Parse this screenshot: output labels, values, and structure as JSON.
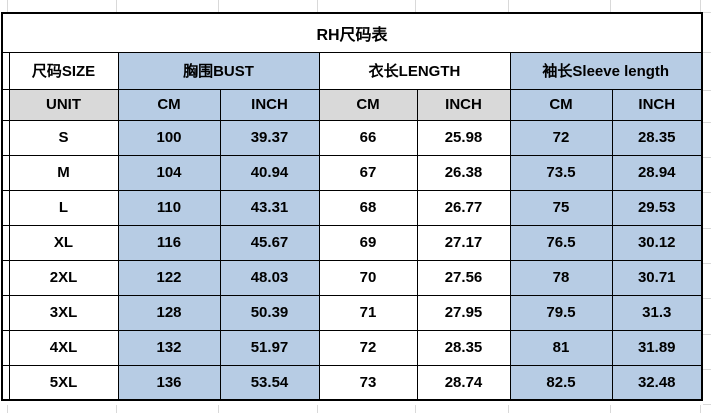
{
  "sheet": {
    "background": "#ffffff",
    "gridline_color": "#d9d9d9"
  },
  "table": {
    "title": "RH尺码表",
    "colors": {
      "band_blue": "#b7cce4",
      "unit_gray": "#d9d9d9",
      "cell_white": "#ffffff",
      "border_black": "#000000",
      "text_black": "#000000"
    },
    "column_groups": {
      "size": "尺码SIZE",
      "bust": "胸围BUST",
      "length": "衣长LENGTH",
      "sleeve": "袖长Sleeve length"
    },
    "unit_row": {
      "label": "UNIT",
      "units": [
        "CM",
        "INCH",
        "CM",
        "INCH",
        "CM",
        "INCH"
      ]
    },
    "rows": [
      {
        "size": "S",
        "bust_cm": "100",
        "bust_inch": "39.37",
        "length_cm": "66",
        "length_inch": "25.98",
        "sleeve_cm": "72",
        "sleeve_inch": "28.35"
      },
      {
        "size": "M",
        "bust_cm": "104",
        "bust_inch": "40.94",
        "length_cm": "67",
        "length_inch": "26.38",
        "sleeve_cm": "73.5",
        "sleeve_inch": "28.94"
      },
      {
        "size": "L",
        "bust_cm": "110",
        "bust_inch": "43.31",
        "length_cm": "68",
        "length_inch": "26.77",
        "sleeve_cm": "75",
        "sleeve_inch": "29.53"
      },
      {
        "size": "XL",
        "bust_cm": "116",
        "bust_inch": "45.67",
        "length_cm": "69",
        "length_inch": "27.17",
        "sleeve_cm": "76.5",
        "sleeve_inch": "30.12"
      },
      {
        "size": "2XL",
        "bust_cm": "122",
        "bust_inch": "48.03",
        "length_cm": "70",
        "length_inch": "27.56",
        "sleeve_cm": "78",
        "sleeve_inch": "30.71"
      },
      {
        "size": "3XL",
        "bust_cm": "128",
        "bust_inch": "50.39",
        "length_cm": "71",
        "length_inch": "27.95",
        "sleeve_cm": "79.5",
        "sleeve_inch": "31.3"
      },
      {
        "size": "4XL",
        "bust_cm": "132",
        "bust_inch": "51.97",
        "length_cm": "72",
        "length_inch": "28.35",
        "sleeve_cm": "81",
        "sleeve_inch": "31.89"
      },
      {
        "size": "5XL",
        "bust_cm": "136",
        "bust_inch": "53.54",
        "length_cm": "73",
        "length_inch": "28.74",
        "sleeve_cm": "82.5",
        "sleeve_inch": "32.48"
      }
    ]
  },
  "chart_data": {
    "type": "table",
    "title": "RH尺码表",
    "columns": [
      "尺码SIZE",
      "胸围BUST CM",
      "胸围BUST INCH",
      "衣长LENGTH CM",
      "衣长LENGTH INCH",
      "袖长Sleeve length CM",
      "袖长Sleeve length INCH"
    ],
    "rows": [
      [
        "S",
        100,
        39.37,
        66,
        25.98,
        72,
        28.35
      ],
      [
        "M",
        104,
        40.94,
        67,
        26.38,
        73.5,
        28.94
      ],
      [
        "L",
        110,
        43.31,
        68,
        26.77,
        75,
        29.53
      ],
      [
        "XL",
        116,
        45.67,
        69,
        27.17,
        76.5,
        30.12
      ],
      [
        "2XL",
        122,
        48.03,
        70,
        27.56,
        78,
        30.71
      ],
      [
        "3XL",
        128,
        50.39,
        71,
        27.95,
        79.5,
        31.3
      ],
      [
        "4XL",
        132,
        51.97,
        72,
        28.35,
        81,
        31.89
      ],
      [
        "5XL",
        136,
        53.54,
        73,
        28.74,
        82.5,
        32.48
      ]
    ]
  }
}
